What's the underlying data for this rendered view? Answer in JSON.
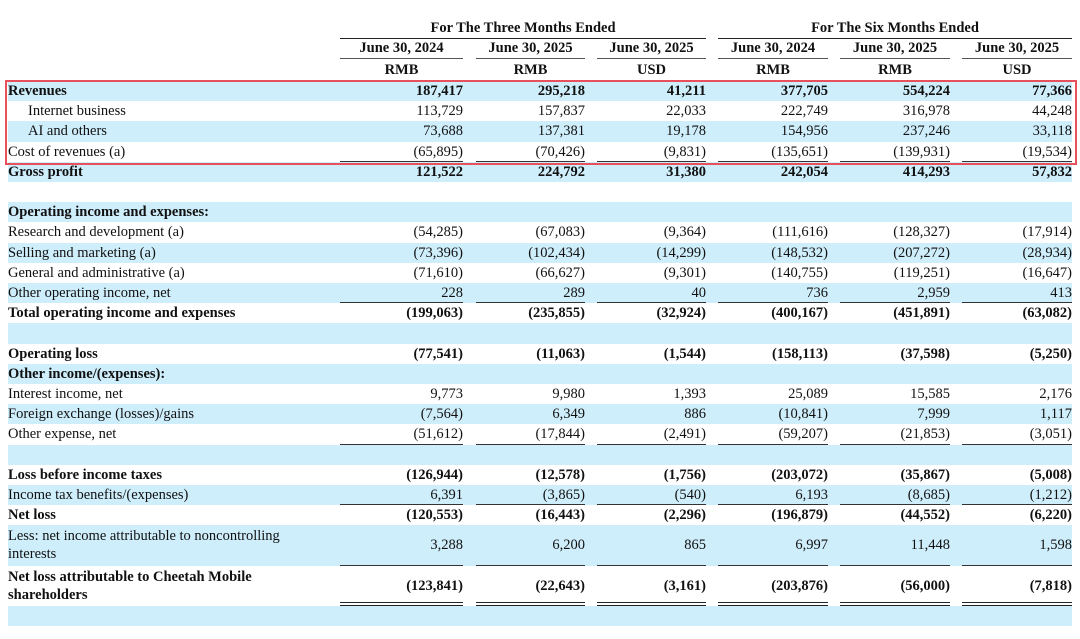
{
  "header": {
    "groups": [
      "For The Three Months Ended",
      "For The Six Months Ended"
    ],
    "dates": [
      "June 30, 2024",
      "June 30, 2025",
      "June 30, 2025",
      "June 30, 2024",
      "June 30, 2025",
      "June 30, 2025"
    ],
    "currencies": [
      "RMB",
      "RMB",
      "USD",
      "RMB",
      "RMB",
      "USD"
    ]
  },
  "highlight_color": "#e8505b",
  "row_shading_color": "#cfeefb",
  "rows": [
    {
      "label": "Revenues",
      "values": [
        "187,417",
        "295,218",
        "41,211",
        "377,705",
        "554,224",
        "77,366"
      ],
      "bold": true
    },
    {
      "label": "Internet business",
      "values": [
        "113,729",
        "157,837",
        "22,033",
        "222,749",
        "316,978",
        "44,248"
      ],
      "indent": true
    },
    {
      "label": "AI and others",
      "values": [
        "73,688",
        "137,381",
        "19,178",
        "154,956",
        "237,246",
        "33,118"
      ],
      "indent": true
    },
    {
      "label": "Cost of revenues (a)",
      "values": [
        "(65,895)",
        "(70,426)",
        "(9,831)",
        "(135,651)",
        "(139,931)",
        "(19,534)"
      ],
      "rule": "single"
    },
    {
      "label": "Gross profit",
      "values": [
        "121,522",
        "224,792",
        "31,380",
        "242,054",
        "414,293",
        "57,832"
      ],
      "bold": true
    },
    {
      "label": "",
      "values": []
    },
    {
      "label": "Operating income and expenses:",
      "values": [],
      "bold": true
    },
    {
      "label": "Research and development (a)",
      "values": [
        "(54,285)",
        "(67,083)",
        "(9,364)",
        "(111,616)",
        "(128,327)",
        "(17,914)"
      ]
    },
    {
      "label": "Selling and marketing (a)",
      "values": [
        "(73,396)",
        "(102,434)",
        "(14,299)",
        "(148,532)",
        "(207,272)",
        "(28,934)"
      ]
    },
    {
      "label": "General and administrative (a)",
      "values": [
        "(71,610)",
        "(66,627)",
        "(9,301)",
        "(140,755)",
        "(119,251)",
        "(16,647)"
      ]
    },
    {
      "label": "Other operating income, net",
      "values": [
        "228",
        "289",
        "40",
        "736",
        "2,959",
        "413"
      ],
      "rule": "single"
    },
    {
      "label": "Total operating income and expenses",
      "values": [
        "(199,063)",
        "(235,855)",
        "(32,924)",
        "(400,167)",
        "(451,891)",
        "(63,082)"
      ],
      "bold": true
    },
    {
      "label": "",
      "values": []
    },
    {
      "label": "Operating loss",
      "values": [
        "(77,541)",
        "(11,063)",
        "(1,544)",
        "(158,113)",
        "(37,598)",
        "(5,250)"
      ],
      "bold": true
    },
    {
      "label": "Other income/(expenses):",
      "values": [],
      "bold": true
    },
    {
      "label": "Interest income, net",
      "values": [
        "9,773",
        "9,980",
        "1,393",
        "25,089",
        "15,585",
        "2,176"
      ]
    },
    {
      "label": "Foreign exchange (losses)/gains",
      "values": [
        "(7,564)",
        "6,349",
        "886",
        "(10,841)",
        "7,999",
        "1,117"
      ]
    },
    {
      "label": "Other expense, net",
      "values": [
        "(51,612)",
        "(17,844)",
        "(2,491)",
        "(59,207)",
        "(21,853)",
        "(3,051)"
      ],
      "rule": "single"
    },
    {
      "label": "",
      "values": []
    },
    {
      "label": "Loss before income taxes",
      "values": [
        "(126,944)",
        "(12,578)",
        "(1,756)",
        "(203,072)",
        "(35,867)",
        "(5,008)"
      ],
      "bold": true
    },
    {
      "label": "Income tax benefits/(expenses)",
      "values": [
        "6,391",
        "(3,865)",
        "(540)",
        "6,193",
        "(8,685)",
        "(1,212)"
      ],
      "rule": "single"
    },
    {
      "label": "Net loss",
      "values": [
        "(120,553)",
        "(16,443)",
        "(2,296)",
        "(196,879)",
        "(44,552)",
        "(6,220)"
      ],
      "bold": true
    },
    {
      "label": "Less: net income attributable to noncontrolling\ninterests",
      "values": [
        "3,288",
        "6,200",
        "865",
        "6,997",
        "11,448",
        "1,598"
      ],
      "tall": true,
      "rule": "single"
    },
    {
      "label": "Net loss attributable to Cheetah Mobile\nshareholders",
      "values": [
        "(123,841)",
        "(22,643)",
        "(3,161)",
        "(203,876)",
        "(56,000)",
        "(7,818)"
      ],
      "bold": true,
      "tall": true,
      "rule": "double"
    },
    {
      "label": "",
      "values": []
    }
  ]
}
